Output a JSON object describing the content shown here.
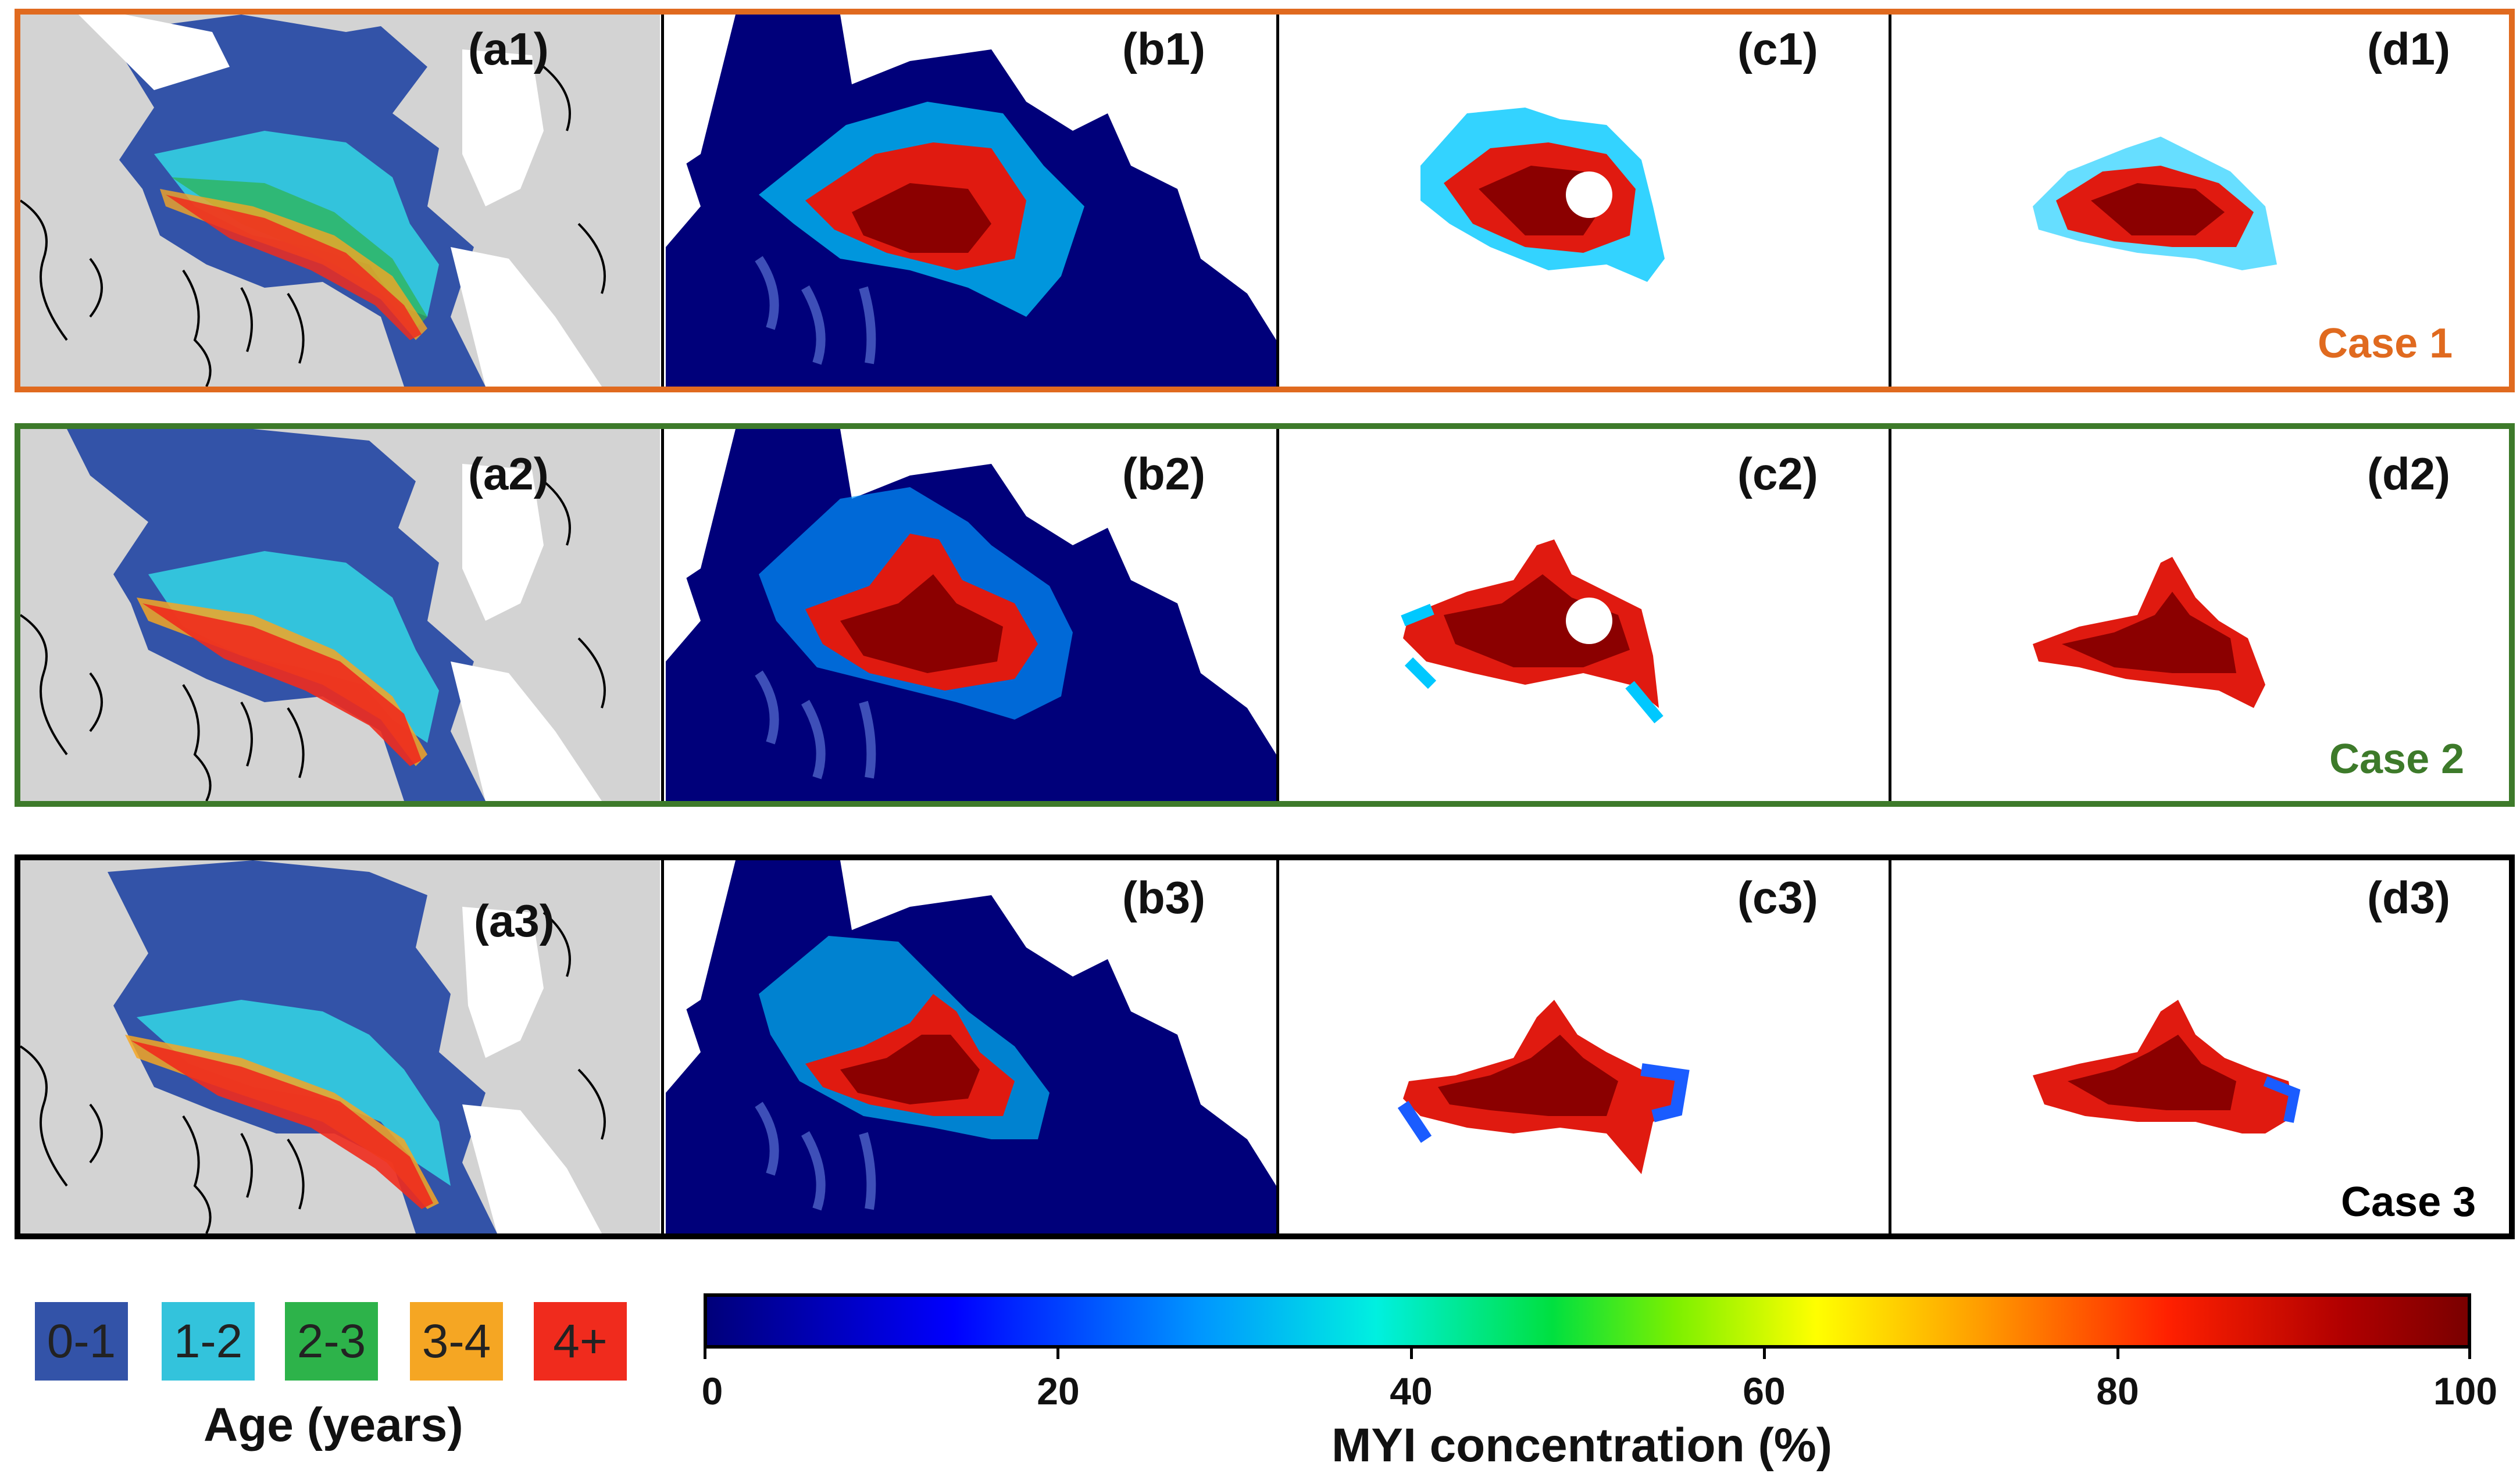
{
  "panels": {
    "a1": "(a1)",
    "b1": "(b1)",
    "c1": "(c1)",
    "d1": "(d1)",
    "a2": "(a2)",
    "b2": "(b2)",
    "c2": "(c2)",
    "d2": "(d2)",
    "a3": "(a3)",
    "b3": "(b3)",
    "c3": "(c3)",
    "d3": "(d3)"
  },
  "cases": [
    {
      "label": "Case 1",
      "color": "#e06a1f"
    },
    {
      "label": "Case 2",
      "color": "#3d7a2a"
    },
    {
      "label": "Case 3",
      "color": "#000000"
    }
  ],
  "age_legend": {
    "title": "Age (years)",
    "items": [
      {
        "label": "0-1",
        "color": "#3353a8"
      },
      {
        "label": "1-2",
        "color": "#33c3dc"
      },
      {
        "label": "2-3",
        "color": "#2db34a"
      },
      {
        "label": "3-4",
        "color": "#f5a623"
      },
      {
        "label": "4+",
        "color": "#f02b1d"
      }
    ]
  },
  "colorbar": {
    "title": "MYI concentration (%)",
    "ticks": [
      "0",
      "20",
      "40",
      "60",
      "80",
      "100"
    ],
    "colormap": "jet"
  }
}
